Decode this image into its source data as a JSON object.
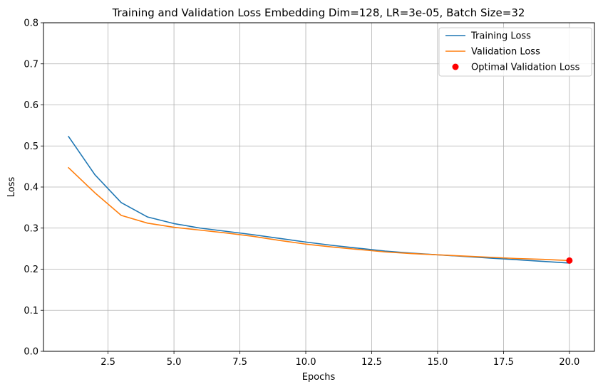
{
  "chart_data": {
    "type": "line",
    "title": "Training and Validation Loss Embedding Dim=128, LR=3e-05, Batch Size=32",
    "xlabel": "Epochs",
    "ylabel": "Loss",
    "xlim": [
      0.05,
      20.95
    ],
    "ylim": [
      0,
      0.8
    ],
    "xticks": [
      2.5,
      5.0,
      7.5,
      10.0,
      12.5,
      15.0,
      17.5,
      20.0
    ],
    "xtick_labels": [
      "2.5",
      "5.0",
      "7.5",
      "10.0",
      "12.5",
      "15.0",
      "17.5",
      "20.0"
    ],
    "yticks": [
      0,
      0.1,
      0.2,
      0.3,
      0.4,
      0.5,
      0.6,
      0.7,
      0.8
    ],
    "ytick_labels": [
      "0.0",
      "0.1",
      "0.2",
      "0.3",
      "0.4",
      "0.5",
      "0.6",
      "0.7",
      "0.8"
    ],
    "grid": true,
    "legend_position": "top-right",
    "x": [
      1,
      2,
      3,
      4,
      5,
      6,
      7,
      8,
      9,
      10,
      11,
      12,
      13,
      14,
      15,
      16,
      17,
      18,
      19,
      20
    ],
    "series": [
      {
        "name": "Training Loss",
        "color": "#1f77b4",
        "style": "line",
        "values": [
          0.523,
          0.43,
          0.362,
          0.327,
          0.311,
          0.3,
          0.292,
          0.284,
          0.275,
          0.266,
          0.258,
          0.251,
          0.244,
          0.239,
          0.235,
          0.231,
          0.227,
          0.223,
          0.219,
          0.215
        ]
      },
      {
        "name": "Validation Loss",
        "color": "#ff7f0e",
        "style": "line",
        "values": [
          0.447,
          0.386,
          0.331,
          0.312,
          0.302,
          0.295,
          0.288,
          0.28,
          0.27,
          0.261,
          0.254,
          0.248,
          0.242,
          0.238,
          0.235,
          0.232,
          0.229,
          0.226,
          0.224,
          0.221
        ]
      },
      {
        "name": "Optimal Validation Loss",
        "color": "#ff0000",
        "style": "marker",
        "points": [
          {
            "x": 20,
            "y": 0.221
          }
        ]
      }
    ]
  }
}
